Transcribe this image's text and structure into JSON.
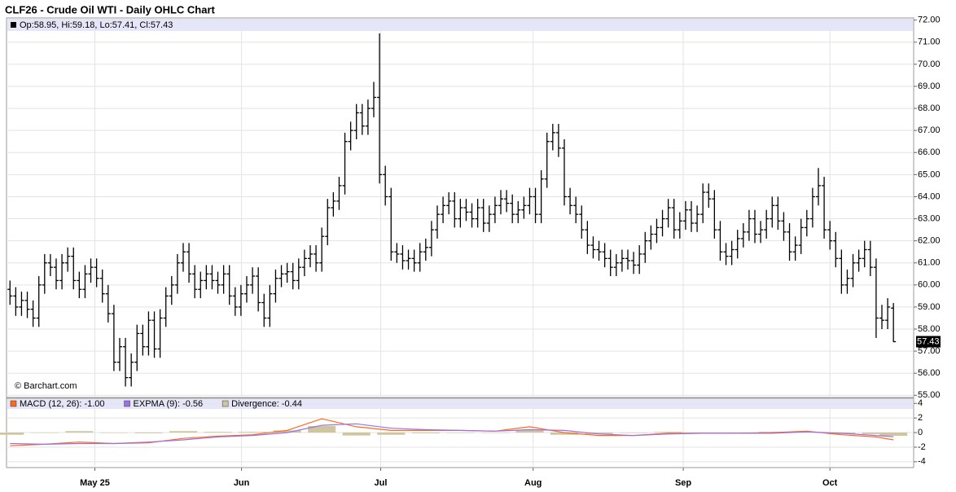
{
  "chart_data": [
    {
      "type": "ohlc",
      "title": "CLF26 - Crude Oil WTI - Daily OHLC Chart",
      "legend_text": "Op:58.95, Hi:59.18, Lo:57.41, Cl:57.43",
      "watermark": "© Barchart.com",
      "color": "#000000",
      "grid": true,
      "open": [
        59.8,
        59.5,
        59.0,
        59.3,
        58.9,
        58.5,
        60.0,
        61.0,
        60.8,
        60.2,
        61.0,
        61.3,
        60.2,
        59.8,
        60.5,
        60.8,
        60.3,
        59.6,
        58.7,
        56.5,
        57.2,
        55.8,
        56.5,
        57.8,
        57.2,
        58.4,
        57.1,
        58.5,
        59.5,
        60.0,
        61.0,
        61.5,
        60.5,
        59.8,
        60.2,
        60.5,
        60.2,
        60.0,
        60.5,
        59.5,
        59.0,
        59.6,
        60.0,
        60.4,
        59.2,
        58.5,
        59.6,
        60.3,
        60.5,
        60.6,
        60.2,
        60.8,
        61.2,
        61.4,
        61.0,
        62.2,
        63.5,
        63.8,
        64.5,
        66.5,
        67.0,
        67.8,
        67.2,
        68.0,
        68.5,
        65.0,
        64.0,
        61.5,
        61.4,
        61.1,
        61.2,
        61.0,
        61.5,
        61.7,
        62.5,
        63.2,
        63.6,
        63.8,
        63.0,
        63.5,
        63.3,
        63.0,
        63.5,
        62.8,
        63.2,
        63.6,
        63.9,
        63.7,
        63.2,
        63.4,
        63.6,
        64.0,
        63.2,
        64.8,
        66.5,
        66.9,
        66.2,
        64.0,
        63.6,
        63.2,
        62.5,
        61.8,
        61.6,
        61.5,
        61.2,
        60.8,
        61.0,
        61.2,
        61.1,
        60.9,
        61.4,
        62.0,
        62.3,
        62.6,
        63.0,
        63.5,
        62.5,
        62.9,
        63.4,
        62.8,
        63.2,
        64.2,
        63.9,
        62.5,
        61.5,
        61.3,
        61.6,
        62.1,
        62.4,
        63.0,
        62.3,
        62.5,
        63.0,
        63.6,
        62.9,
        62.4,
        61.5,
        61.8,
        62.6,
        63.0,
        64.0,
        64.5,
        62.5,
        62.0,
        61.2,
        60.0,
        60.3,
        61.0,
        61.2,
        61.6,
        60.8,
        58.5,
        58.4,
        58.95
      ],
      "high": [
        60.2,
        59.9,
        59.7,
        59.7,
        59.3,
        60.4,
        61.4,
        61.4,
        61.2,
        61.4,
        61.7,
        61.7,
        60.6,
        60.9,
        61.2,
        61.2,
        60.7,
        60.0,
        59.1,
        57.6,
        57.6,
        56.9,
        58.2,
        58.2,
        58.8,
        58.8,
        58.9,
        59.9,
        60.4,
        61.4,
        61.9,
        61.9,
        60.9,
        60.6,
        60.9,
        60.9,
        60.6,
        60.9,
        60.9,
        59.9,
        60.0,
        60.4,
        60.8,
        60.8,
        59.6,
        60.0,
        60.7,
        60.9,
        61.0,
        61.0,
        61.2,
        61.6,
        61.8,
        61.8,
        62.6,
        63.9,
        64.2,
        64.9,
        66.9,
        67.4,
        68.2,
        68.2,
        68.4,
        69.2,
        71.4,
        65.4,
        64.4,
        61.9,
        61.8,
        61.6,
        61.6,
        61.9,
        62.1,
        62.9,
        63.6,
        64.0,
        64.2,
        64.2,
        63.9,
        63.9,
        63.7,
        63.9,
        63.9,
        63.6,
        64.0,
        64.3,
        64.3,
        64.1,
        63.8,
        64.0,
        64.4,
        64.4,
        65.2,
        66.9,
        67.3,
        67.3,
        66.6,
        64.4,
        64.0,
        63.6,
        62.9,
        62.2,
        62.0,
        61.9,
        61.6,
        61.4,
        61.6,
        61.6,
        61.5,
        61.8,
        62.4,
        62.7,
        63.0,
        63.4,
        63.9,
        63.9,
        63.3,
        63.8,
        63.8,
        63.6,
        64.6,
        64.6,
        64.3,
        62.9,
        61.9,
        62.0,
        62.5,
        62.8,
        63.4,
        63.4,
        62.9,
        63.4,
        64.0,
        64.0,
        63.3,
        62.8,
        62.2,
        63.0,
        63.4,
        64.4,
        65.3,
        64.9,
        62.9,
        62.4,
        61.6,
        60.7,
        61.4,
        61.6,
        62.0,
        62.0,
        61.2,
        59.1,
        59.4,
        59.18
      ],
      "low": [
        59.1,
        58.6,
        58.6,
        58.5,
        58.1,
        58.1,
        59.6,
        60.4,
        59.8,
        59.8,
        60.6,
        59.8,
        59.4,
        59.4,
        60.1,
        59.9,
        59.2,
        58.3,
        56.1,
        56.1,
        55.4,
        55.4,
        56.1,
        56.8,
        56.8,
        56.7,
        56.7,
        58.1,
        59.1,
        59.6,
        60.6,
        60.1,
        59.4,
        59.4,
        59.8,
        59.8,
        59.6,
        59.6,
        59.1,
        58.6,
        58.6,
        59.2,
        59.6,
        58.8,
        58.1,
        58.1,
        59.2,
        59.9,
        60.1,
        59.8,
        59.8,
        60.4,
        60.8,
        60.6,
        60.6,
        61.8,
        63.1,
        63.4,
        64.1,
        66.1,
        66.6,
        66.8,
        66.8,
        67.6,
        64.6,
        63.6,
        61.1,
        61.0,
        60.7,
        60.7,
        60.6,
        60.6,
        61.1,
        61.3,
        62.1,
        62.8,
        63.2,
        62.6,
        62.6,
        62.9,
        62.6,
        62.6,
        62.4,
        62.4,
        62.8,
        63.2,
        63.3,
        62.8,
        62.8,
        63.0,
        63.2,
        62.8,
        62.8,
        64.4,
        66.1,
        65.8,
        63.6,
        63.2,
        62.8,
        62.1,
        61.4,
        61.2,
        61.1,
        60.8,
        60.4,
        60.4,
        60.6,
        60.7,
        60.5,
        60.5,
        61.0,
        61.6,
        61.9,
        62.2,
        62.6,
        62.1,
        62.1,
        62.5,
        62.4,
        62.4,
        62.8,
        63.5,
        62.1,
        61.1,
        60.9,
        60.9,
        61.2,
        61.7,
        62.0,
        61.9,
        61.9,
        62.1,
        62.6,
        62.5,
        62.0,
        61.1,
        61.1,
        61.4,
        62.2,
        62.6,
        63.6,
        62.1,
        61.6,
        60.8,
        59.6,
        59.6,
        59.9,
        60.6,
        60.8,
        60.4,
        57.6,
        58.0,
        58.0,
        57.41
      ],
      "close": [
        59.5,
        59.0,
        59.3,
        58.9,
        58.5,
        60.0,
        61.0,
        60.8,
        60.2,
        61.0,
        61.3,
        60.2,
        59.8,
        60.5,
        60.8,
        60.3,
        59.6,
        58.7,
        56.5,
        57.2,
        55.8,
        56.5,
        57.8,
        57.2,
        58.4,
        57.1,
        58.5,
        59.5,
        60.0,
        61.0,
        61.5,
        60.5,
        59.8,
        60.2,
        60.5,
        60.2,
        60.0,
        60.5,
        59.5,
        59.0,
        59.6,
        60.0,
        60.4,
        59.2,
        58.5,
        59.6,
        60.3,
        60.5,
        60.6,
        60.2,
        60.8,
        61.2,
        61.4,
        61.0,
        62.2,
        63.5,
        63.8,
        64.5,
        66.5,
        67.0,
        67.8,
        67.2,
        68.0,
        68.5,
        65.0,
        64.0,
        61.5,
        61.4,
        61.1,
        61.2,
        61.0,
        61.5,
        61.7,
        62.5,
        63.2,
        63.6,
        63.8,
        63.0,
        63.5,
        63.3,
        63.0,
        63.5,
        62.8,
        63.2,
        63.6,
        63.9,
        63.7,
        63.2,
        63.4,
        63.6,
        64.0,
        63.2,
        64.8,
        66.5,
        66.9,
        66.2,
        64.0,
        63.6,
        63.2,
        62.5,
        61.8,
        61.6,
        61.5,
        61.2,
        60.8,
        61.0,
        61.2,
        61.1,
        60.9,
        61.4,
        62.0,
        62.3,
        62.6,
        63.0,
        63.5,
        62.5,
        62.9,
        63.4,
        62.8,
        63.2,
        64.2,
        63.9,
        62.5,
        61.5,
        61.3,
        61.6,
        62.1,
        62.4,
        63.0,
        62.3,
        62.5,
        63.0,
        63.6,
        62.9,
        62.4,
        61.5,
        61.8,
        62.6,
        63.0,
        64.0,
        64.5,
        62.5,
        62.0,
        61.2,
        60.0,
        60.3,
        61.0,
        61.2,
        61.6,
        60.8,
        58.5,
        58.4,
        59.0,
        57.43
      ],
      "last_price": 57.43,
      "xlim": [
        -0.6,
        156.5
      ],
      "ylim": [
        54.9,
        72.1
      ],
      "yticks": [
        {
          "value": 55,
          "label": "55.00"
        },
        {
          "value": 56,
          "label": "56.00"
        },
        {
          "value": 57,
          "label": "57.00"
        },
        {
          "value": 58,
          "label": "58.00"
        },
        {
          "value": 59,
          "label": "59.00"
        },
        {
          "value": 60,
          "label": "60.00"
        },
        {
          "value": 61,
          "label": "61.00"
        },
        {
          "value": 62,
          "label": "62.00"
        },
        {
          "value": 63,
          "label": "63.00"
        },
        {
          "value": 64,
          "label": "64.00"
        },
        {
          "value": 65,
          "label": "65.00"
        },
        {
          "value": 66,
          "label": "66.00"
        },
        {
          "value": 67,
          "label": "67.00"
        },
        {
          "value": 68,
          "label": "68.00"
        },
        {
          "value": 69,
          "label": "69.00"
        },
        {
          "value": 70,
          "label": "70.00"
        },
        {
          "value": 71,
          "label": "71.00"
        },
        {
          "value": 72,
          "label": "72.00"
        }
      ]
    },
    {
      "type": "macd",
      "grid": true,
      "x": [
        0,
        6,
        12,
        18,
        24,
        30,
        36,
        42,
        48,
        54,
        60,
        66,
        72,
        78,
        84,
        90,
        96,
        102,
        108,
        114,
        120,
        126,
        132,
        138,
        144,
        150,
        153
      ],
      "series": [
        {
          "name": "MACD (12, 26): -1.00",
          "color": "#ff6a1a",
          "style": "line",
          "values": [
            -1.8,
            -1.6,
            -1.3,
            -1.5,
            -1.4,
            -0.8,
            -0.5,
            -0.3,
            0.3,
            1.9,
            0.8,
            0.3,
            0.3,
            0.3,
            0.2,
            0.8,
            0.0,
            -0.4,
            -0.4,
            -0.1,
            -0.1,
            -0.1,
            0.0,
            0.2,
            -0.3,
            -0.6,
            -1.0
          ]
        },
        {
          "name": "EXPMA (9): -0.56",
          "color": "#9d70e6",
          "style": "line",
          "values": [
            -1.5,
            -1.6,
            -1.5,
            -1.5,
            -1.3,
            -1.0,
            -0.6,
            -0.4,
            0.0,
            1.0,
            1.2,
            0.6,
            0.4,
            0.3,
            0.2,
            0.4,
            0.3,
            -0.2,
            -0.4,
            -0.2,
            -0.1,
            -0.1,
            -0.1,
            0.1,
            -0.1,
            -0.4,
            -0.56
          ]
        },
        {
          "name": "Divergence: -0.44",
          "color": "#cfc69e",
          "style": "bar",
          "values": [
            -0.3,
            0,
            0.2,
            0,
            -0.1,
            0.2,
            0.1,
            0.1,
            0.3,
            0.9,
            -0.4,
            -0.3,
            -0.1,
            0,
            0,
            0.4,
            -0.3,
            -0.2,
            0,
            0.1,
            0,
            0,
            0.1,
            0.1,
            -0.2,
            -0.2,
            -0.44
          ]
        }
      ],
      "xlim": [
        -0.6,
        156.5
      ],
      "ylim": [
        -4.8,
        4.7
      ],
      "yticks": [
        4,
        2,
        0,
        -2,
        -4
      ],
      "xticks": [
        {
          "value": 14.7,
          "label": "May 25"
        },
        {
          "value": 40.1,
          "label": "Jun"
        },
        {
          "value": 64.2,
          "label": "Jul"
        },
        {
          "value": 90.6,
          "label": "Aug"
        },
        {
          "value": 116.6,
          "label": "Sep"
        },
        {
          "value": 142.0,
          "label": "Oct"
        }
      ]
    }
  ]
}
